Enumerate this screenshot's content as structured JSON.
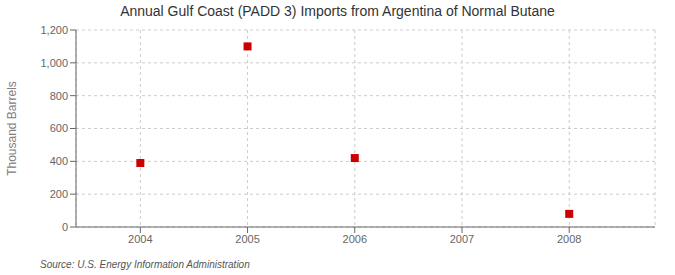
{
  "chart_data": {
    "type": "scatter",
    "title": "Annual Gulf Coast (PADD 3) Imports from Argentina of Normal Butane",
    "y_label": "Thousand Barrels",
    "annotations": [
      "Source: U.S. Energy Information Administration"
    ],
    "x": [
      2004,
      2005,
      2006,
      2008
    ],
    "values": [
      390,
      1100,
      420,
      80
    ],
    "color": "#cc0000",
    "marker": "square",
    "xlim": [
      2003.4,
      2008.8
    ],
    "ylim": [
      0,
      1200
    ],
    "xticks": [
      2004,
      2005,
      2006,
      2007,
      2008
    ],
    "yticks": [
      0,
      200,
      400,
      600,
      {
        "value": 1000,
        "label": "1,000"
      },
      {
        "value": 1200,
        "label": "1,200"
      },
      800
    ],
    "grid": true
  }
}
